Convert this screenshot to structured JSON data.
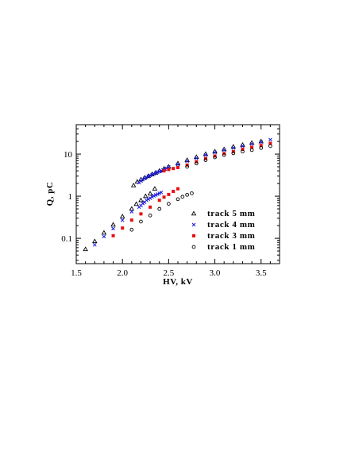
{
  "chart_data": {
    "type": "scatter",
    "title": "",
    "xlabel": "HV, kV",
    "ylabel": "Q, pC",
    "xlim": [
      1.5,
      3.7
    ],
    "ylim": [
      0.025,
      50
    ],
    "yscale": "log",
    "grid": false,
    "legend_position": "lower-right",
    "xticks": [
      1.5,
      2.0,
      2.5,
      3.0,
      3.5
    ],
    "xtick_labels": [
      "1.5",
      "2.0",
      "2.5",
      "3.0",
      "3.5"
    ],
    "yticks": [
      0.1,
      1,
      10
    ],
    "ytick_labels": [
      "0.1",
      "1",
      "10"
    ],
    "series": [
      {
        "name": "track 5 mm",
        "marker": "open-triangle",
        "color": "#000000",
        "points": [
          [
            1.6,
            0.055
          ],
          [
            1.7,
            0.085
          ],
          [
            1.8,
            0.135
          ],
          [
            1.9,
            0.21
          ],
          [
            2.0,
            0.33
          ],
          [
            2.1,
            0.5
          ],
          [
            2.15,
            0.65
          ],
          [
            2.2,
            0.8
          ],
          [
            2.25,
            1.0
          ],
          [
            2.3,
            1.15
          ],
          [
            2.35,
            1.5
          ],
          [
            2.12,
            1.8
          ],
          [
            2.16,
            2.2
          ],
          [
            2.2,
            2.5
          ],
          [
            2.24,
            2.75
          ],
          [
            2.28,
            3.0
          ],
          [
            2.32,
            3.3
          ],
          [
            2.36,
            3.6
          ],
          [
            2.4,
            4.0
          ],
          [
            2.45,
            4.5
          ],
          [
            2.5,
            5.0
          ],
          [
            2.6,
            6.0
          ],
          [
            2.7,
            7.2
          ],
          [
            2.8,
            8.5
          ],
          [
            2.9,
            10.0
          ],
          [
            3.0,
            11.5
          ],
          [
            3.1,
            13.0
          ],
          [
            3.2,
            15.0
          ],
          [
            3.3,
            16.5
          ],
          [
            3.4,
            18.5
          ],
          [
            3.5,
            20.0
          ]
        ]
      },
      {
        "name": "track 4 mm",
        "marker": "cross",
        "color": "#1a1adc",
        "points": [
          [
            1.7,
            0.07
          ],
          [
            1.8,
            0.11
          ],
          [
            1.9,
            0.17
          ],
          [
            2.0,
            0.27
          ],
          [
            2.1,
            0.43
          ],
          [
            2.18,
            0.55
          ],
          [
            2.2,
            0.6
          ],
          [
            2.22,
            0.67
          ],
          [
            2.24,
            0.72
          ],
          [
            2.26,
            0.8
          ],
          [
            2.28,
            0.85
          ],
          [
            2.3,
            0.9
          ],
          [
            2.32,
            0.97
          ],
          [
            2.34,
            1.02
          ],
          [
            2.36,
            1.07
          ],
          [
            2.38,
            1.12
          ],
          [
            2.4,
            1.17
          ],
          [
            2.42,
            1.23
          ],
          [
            2.18,
            2.1
          ],
          [
            2.2,
            2.3
          ],
          [
            2.22,
            2.5
          ],
          [
            2.24,
            2.65
          ],
          [
            2.26,
            2.8
          ],
          [
            2.28,
            2.95
          ],
          [
            2.3,
            3.1
          ],
          [
            2.32,
            3.25
          ],
          [
            2.34,
            3.4
          ],
          [
            2.36,
            3.55
          ],
          [
            2.38,
            3.7
          ],
          [
            2.4,
            3.85
          ],
          [
            2.42,
            4.0
          ],
          [
            2.44,
            4.2
          ],
          [
            2.46,
            4.4
          ],
          [
            2.48,
            4.6
          ],
          [
            2.5,
            4.9
          ],
          [
            2.6,
            5.7
          ],
          [
            2.7,
            6.8
          ],
          [
            2.8,
            8.0
          ],
          [
            2.9,
            9.5
          ],
          [
            3.0,
            11.0
          ],
          [
            3.1,
            12.5
          ],
          [
            3.2,
            14.0
          ],
          [
            3.3,
            15.5
          ],
          [
            3.4,
            17.5
          ],
          [
            3.5,
            19.5
          ],
          [
            3.6,
            22.0
          ]
        ]
      },
      {
        "name": "track 3 mm",
        "marker": "filled-square",
        "color": "#e81010",
        "points": [
          [
            1.9,
            0.115
          ],
          [
            2.0,
            0.175
          ],
          [
            2.1,
            0.27
          ],
          [
            2.2,
            0.38
          ],
          [
            2.3,
            0.55
          ],
          [
            2.4,
            0.8
          ],
          [
            2.45,
            0.95
          ],
          [
            2.5,
            1.1
          ],
          [
            2.55,
            1.3
          ],
          [
            2.6,
            1.5
          ],
          [
            2.45,
            4.0
          ],
          [
            2.5,
            4.3
          ],
          [
            2.55,
            4.55
          ],
          [
            2.6,
            4.8
          ],
          [
            2.7,
            5.5
          ],
          [
            2.8,
            6.6
          ],
          [
            2.9,
            7.8
          ],
          [
            3.0,
            9.0
          ],
          [
            3.1,
            10.3
          ],
          [
            3.2,
            11.5
          ],
          [
            3.3,
            13.0
          ],
          [
            3.4,
            14.5
          ],
          [
            3.5,
            16.0
          ],
          [
            3.6,
            18.0
          ]
        ]
      },
      {
        "name": "track 1 mm",
        "marker": "open-circle",
        "color": "#000000",
        "points": [
          [
            2.1,
            0.16
          ],
          [
            2.2,
            0.25
          ],
          [
            2.3,
            0.35
          ],
          [
            2.4,
            0.5
          ],
          [
            2.5,
            0.66
          ],
          [
            2.6,
            0.85
          ],
          [
            2.65,
            0.97
          ],
          [
            2.7,
            1.08
          ],
          [
            2.75,
            1.17
          ],
          [
            2.7,
            5.0
          ],
          [
            2.8,
            6.0
          ],
          [
            2.9,
            7.2
          ],
          [
            3.0,
            8.4
          ],
          [
            3.1,
            9.5
          ],
          [
            3.2,
            10.5
          ],
          [
            3.3,
            11.5
          ],
          [
            3.4,
            12.5
          ],
          [
            3.5,
            14.0
          ],
          [
            3.6,
            15.5
          ]
        ]
      }
    ]
  }
}
